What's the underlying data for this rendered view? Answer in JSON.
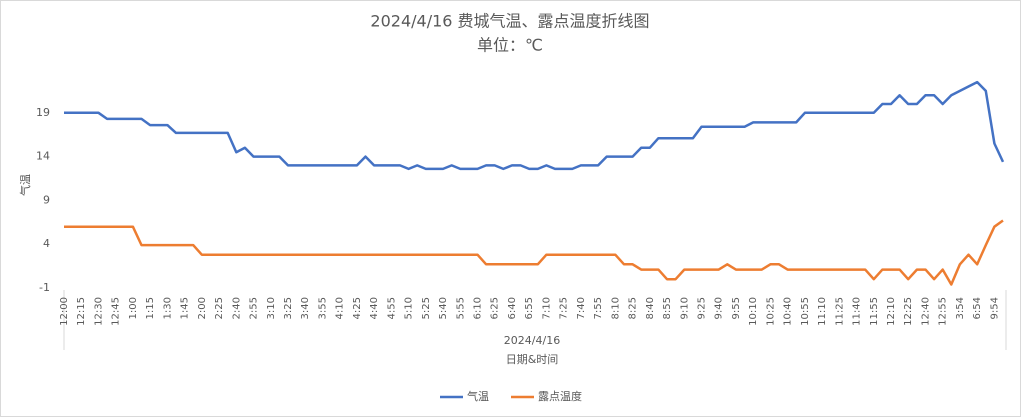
{
  "chart_data": {
    "type": "line",
    "title": "2024/4/16 费城气温、露点温度折线图",
    "subtitle": "单位：℃",
    "y_label": "气温",
    "x_group_label": "2024/4/16",
    "x_label": "日期&时间",
    "categories": [
      "12:00",
      null,
      "12:15",
      null,
      "12:30",
      null,
      "12:45",
      null,
      "1:00",
      null,
      "1:15",
      null,
      "1:30",
      null,
      "1:45",
      null,
      "2:00",
      null,
      "2:25",
      null,
      "2:40",
      null,
      "2:55",
      null,
      "3:10",
      null,
      "3:25",
      null,
      "3:40",
      null,
      "3:55",
      null,
      "4:10",
      null,
      "4:25",
      null,
      "4:40",
      null,
      "4:55",
      null,
      "5:10",
      null,
      "5:25",
      null,
      "5:40",
      null,
      "5:55",
      null,
      "6:10",
      null,
      "6:25",
      null,
      "6:40",
      null,
      "6:55",
      null,
      "7:10",
      null,
      "7:25",
      null,
      "7:40",
      null,
      "7:55",
      null,
      "8:10",
      null,
      "8:25",
      null,
      "8:40",
      null,
      "8:55",
      null,
      "9:10",
      null,
      "9:25",
      null,
      "9:40",
      null,
      "9:55",
      null,
      "10:10",
      null,
      "10:25",
      null,
      "10:40",
      null,
      "10:55",
      null,
      "11:10",
      null,
      "11:25",
      null,
      "11:40",
      null,
      "11:55",
      null,
      "12:10",
      null,
      "12:25",
      null,
      "12:40",
      null,
      "12:55",
      null,
      "3:54",
      null,
      "6:54",
      null,
      "9:54",
      null
    ],
    "series": [
      {
        "name": "气温",
        "color": "#4472c4",
        "values": [
          19,
          19,
          19,
          19,
          19,
          18.3,
          18.3,
          18.3,
          18.3,
          18.3,
          17.6,
          17.6,
          17.6,
          16.7,
          16.7,
          16.7,
          16.7,
          16.7,
          16.7,
          16.7,
          14.5,
          15,
          14,
          14,
          14,
          14,
          13,
          13,
          13,
          13,
          13,
          13,
          13,
          13,
          13,
          14,
          13,
          13,
          13,
          13,
          12.6,
          13,
          12.6,
          12.6,
          12.6,
          13,
          12.6,
          12.6,
          12.6,
          13,
          13,
          12.6,
          13,
          13,
          12.6,
          12.6,
          13,
          12.6,
          12.6,
          12.6,
          13,
          13,
          13,
          14,
          14,
          14,
          14,
          15,
          15,
          16.1,
          16.1,
          16.1,
          16.1,
          16.1,
          17.4,
          17.4,
          17.4,
          17.4,
          17.4,
          17.4,
          17.9,
          17.9,
          17.9,
          17.9,
          17.9,
          17.9,
          19,
          19,
          19,
          19,
          19,
          19,
          19,
          19,
          19,
          20,
          20,
          21,
          20,
          20,
          21,
          21,
          20,
          21,
          21.5,
          22,
          22.5,
          21.5,
          15.5,
          13.4
        ]
      },
      {
        "name": "露点温度",
        "color": "#ed7d31",
        "values": [
          6,
          6,
          6,
          6,
          6,
          6,
          6,
          6,
          6,
          3.9,
          3.9,
          3.9,
          3.9,
          3.9,
          3.9,
          3.9,
          2.8,
          2.8,
          2.8,
          2.8,
          2.8,
          2.8,
          2.8,
          2.8,
          2.8,
          2.8,
          2.8,
          2.8,
          2.8,
          2.8,
          2.8,
          2.8,
          2.8,
          2.8,
          2.8,
          2.8,
          2.8,
          2.8,
          2.8,
          2.8,
          2.8,
          2.8,
          2.8,
          2.8,
          2.8,
          2.8,
          2.8,
          2.8,
          2.8,
          1.7,
          1.7,
          1.7,
          1.7,
          1.7,
          1.7,
          1.7,
          2.8,
          2.8,
          2.8,
          2.8,
          2.8,
          2.8,
          2.8,
          2.8,
          2.8,
          1.7,
          1.7,
          1.1,
          1.1,
          1.1,
          0,
          0,
          1.1,
          1.1,
          1.1,
          1.1,
          1.1,
          1.7,
          1.1,
          1.1,
          1.1,
          1.1,
          1.7,
          1.7,
          1.1,
          1.1,
          1.1,
          1.1,
          1.1,
          1.1,
          1.1,
          1.1,
          1.1,
          1.1,
          0,
          1.1,
          1.1,
          1.1,
          0,
          1.1,
          1.1,
          0,
          1.1,
          -0.6,
          1.7,
          2.8,
          1.7,
          3.9,
          6,
          6.7
        ]
      }
    ],
    "ylim": [
      -1,
      24
    ],
    "yticks": [
      -1,
      4,
      9,
      14,
      19
    ],
    "legend": "bottom"
  }
}
